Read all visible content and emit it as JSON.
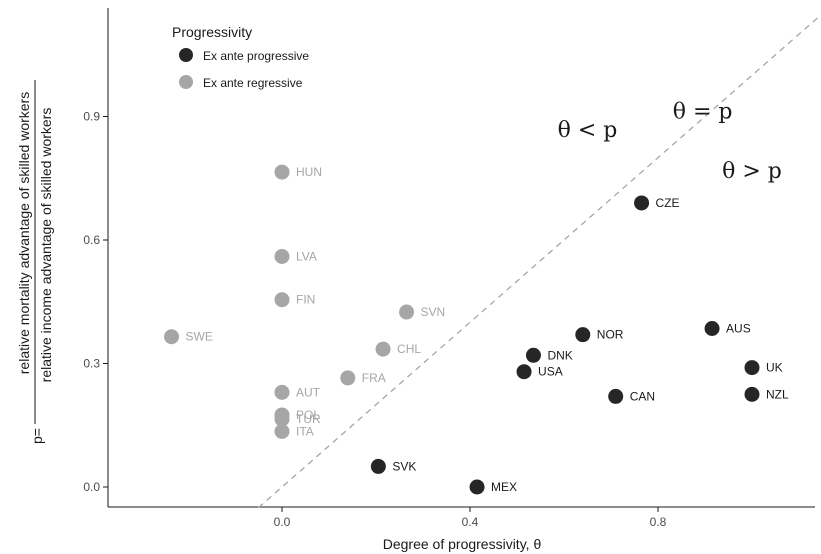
{
  "chart_data": {
    "type": "scatter",
    "title": "",
    "xlabel": "Degree of progressivity, θ",
    "ylabel_prefix": "p=",
    "ylabel_numerator": "relative mortality advantage of skilled workers",
    "ylabel_denominator": "relative income advantage of skilled workers",
    "xlim": [
      -0.37,
      1.17
    ],
    "ylim": [
      -0.05,
      1.15
    ],
    "x_ticks": [
      {
        "value": 0.0,
        "label": "0.0"
      },
      {
        "value": 0.4,
        "label": "0.4"
      },
      {
        "value": 0.8,
        "label": "0.8"
      }
    ],
    "y_ticks": [
      {
        "value": 0.0,
        "label": "0.0"
      },
      {
        "value": 0.3,
        "label": "0.3"
      },
      {
        "value": 0.6,
        "label": "0.6"
      },
      {
        "value": 0.9,
        "label": "0.9"
      }
    ],
    "grid": false,
    "legend": {
      "title": "Progressivity",
      "position": "top-left",
      "entries": [
        {
          "label": "Ex ante progressive",
          "color": "#262626"
        },
        {
          "label": "Ex ante regressive",
          "color": "#a6a6a6"
        }
      ]
    },
    "reference_line": {
      "label": "θ = p",
      "slope": 1,
      "intercept": 0,
      "style": "dashed",
      "color": "#a6a6a6"
    },
    "annotations": [
      {
        "text": "θ < p",
        "x": 0.65,
        "y": 0.85
      },
      {
        "text": "θ = p",
        "x": 0.895,
        "y": 0.895
      },
      {
        "text": "θ > p",
        "x": 1.0,
        "y": 0.75
      }
    ],
    "series": [
      {
        "name": "Ex ante progressive",
        "color": "#262626",
        "label_color": "#1a1a1a",
        "points": [
          {
            "label": "CZE",
            "x": 0.765,
            "y": 0.69
          },
          {
            "label": "AUS",
            "x": 0.915,
            "y": 0.385
          },
          {
            "label": "NOR",
            "x": 0.64,
            "y": 0.37
          },
          {
            "label": "DNK",
            "x": 0.535,
            "y": 0.32
          },
          {
            "label": "USA",
            "x": 0.515,
            "y": 0.28
          },
          {
            "label": "UK",
            "x": 1.0,
            "y": 0.29
          },
          {
            "label": "CAN",
            "x": 0.71,
            "y": 0.22
          },
          {
            "label": "NZL",
            "x": 1.0,
            "y": 0.225
          },
          {
            "label": "SVK",
            "x": 0.205,
            "y": 0.05
          },
          {
            "label": "MEX",
            "x": 0.415,
            "y": 0.0
          }
        ]
      },
      {
        "name": "Ex ante regressive",
        "color": "#a6a6a6",
        "label_color": "#a6a6a6",
        "points": [
          {
            "label": "HUN",
            "x": 0.0,
            "y": 0.765
          },
          {
            "label": "LVA",
            "x": 0.0,
            "y": 0.56
          },
          {
            "label": "FIN",
            "x": 0.0,
            "y": 0.455
          },
          {
            "label": "SVN",
            "x": 0.265,
            "y": 0.425
          },
          {
            "label": "SWE",
            "x": -0.235,
            "y": 0.365
          },
          {
            "label": "CHL",
            "x": 0.215,
            "y": 0.335
          },
          {
            "label": "FRA",
            "x": 0.14,
            "y": 0.265
          },
          {
            "label": "AUT",
            "x": 0.0,
            "y": 0.23
          },
          {
            "label": "POL",
            "x": 0.0,
            "y": 0.175
          },
          {
            "label": "TUR",
            "x": 0.0,
            "y": 0.165
          },
          {
            "label": "ITA",
            "x": 0.0,
            "y": 0.135
          }
        ]
      }
    ]
  }
}
